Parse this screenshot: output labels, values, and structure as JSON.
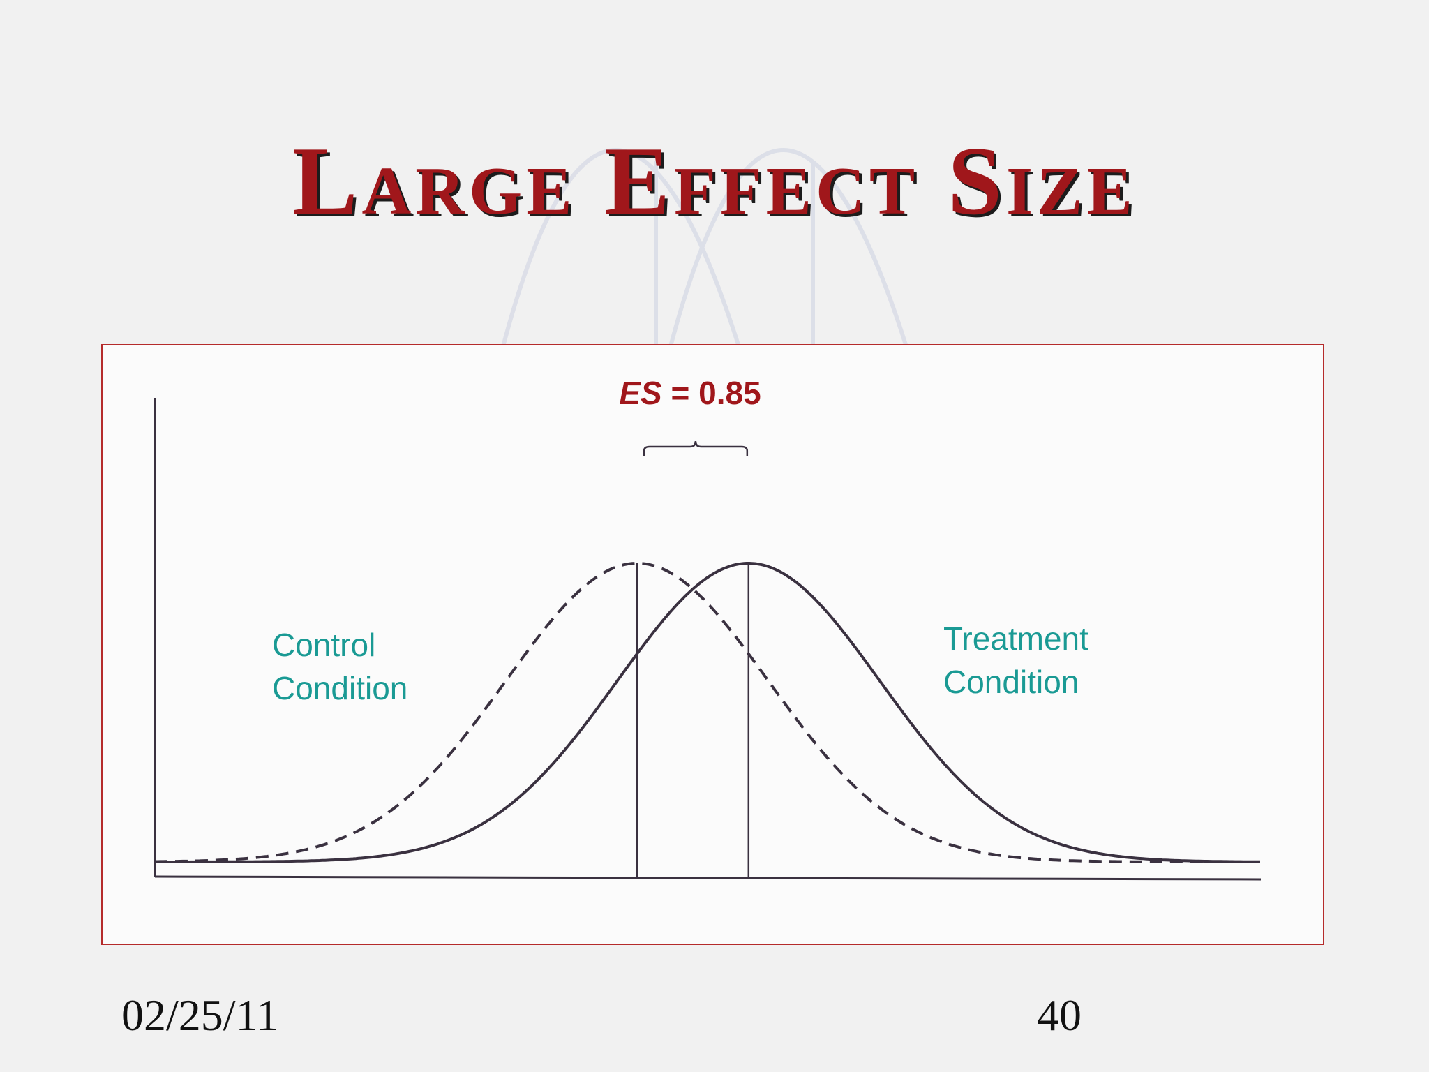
{
  "slide": {
    "title": "Large Effect Size",
    "date": "02/25/11",
    "page_number": "40"
  },
  "chart_data": {
    "type": "line",
    "title": "",
    "xlabel": "",
    "ylabel": "",
    "annotation": {
      "symbol": "ES",
      "equals": " = 0.85",
      "value": 0.85
    },
    "series": [
      {
        "name": "Control Condition",
        "label_lines": [
          "Control",
          "Condition"
        ],
        "style": "dashed",
        "mean": 0,
        "sd": 1
      },
      {
        "name": "Treatment Condition",
        "label_lines": [
          "Treatment",
          "Condition"
        ],
        "style": "solid",
        "mean": 0.85,
        "sd": 1
      }
    ],
    "colors": {
      "title": "#a0171b",
      "annotation": "#a0171b",
      "series_label": "#1a9a94",
      "curves": "#3a3140",
      "frame": "#b52b2b"
    }
  }
}
